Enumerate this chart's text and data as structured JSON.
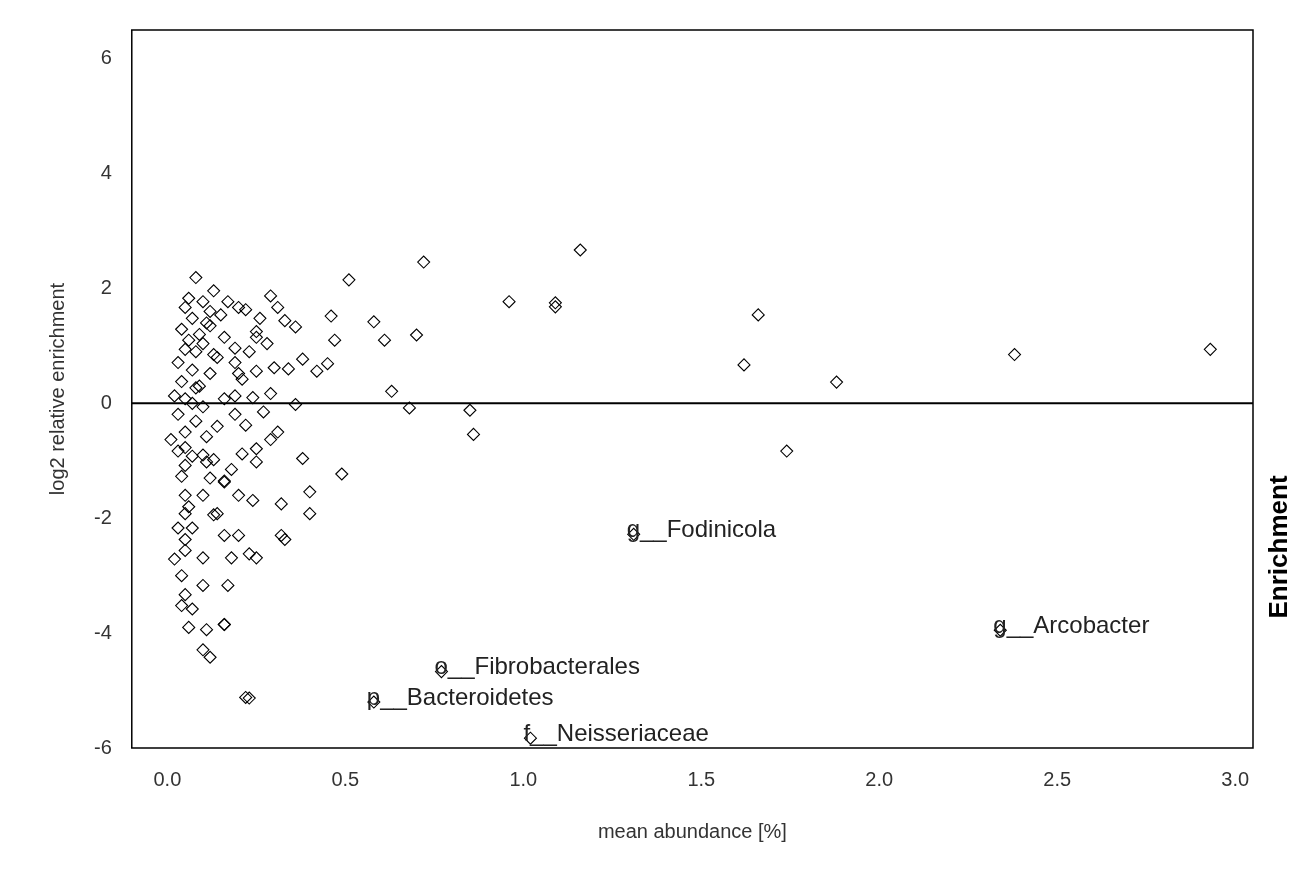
{
  "chart_data": {
    "type": "scatter",
    "xlabel": "mean abundance [%]",
    "ylabel": "log2 relative enrichment",
    "xlim": [
      -0.1,
      3.05
    ],
    "ylim": [
      -6,
      6.5
    ],
    "xticks": [
      {
        "value": 0,
        "label": "0.0"
      },
      {
        "value": 0.5,
        "label": "0.5"
      },
      {
        "value": 1,
        "label": "1.0"
      },
      {
        "value": 1.5,
        "label": "1.5"
      },
      {
        "value": 2,
        "label": "2.0"
      },
      {
        "value": 2.5,
        "label": "2.5"
      },
      {
        "value": 3,
        "label": "3.0"
      }
    ],
    "yticks": [
      -6,
      -4,
      -2,
      0,
      2,
      4,
      6
    ],
    "grid": false,
    "legend": false,
    "marker": "diamond",
    "ref_lines": [
      {
        "axis": "y",
        "value": 0,
        "color": "#000000"
      }
    ],
    "annotations": [
      {
        "text": "g__Fodinicola",
        "x": 1.31,
        "y": -2.28
      },
      {
        "text": "o__Fibrobacterales",
        "x": 0.77,
        "y": -4.67
      },
      {
        "text": "p__Bacteroidetes",
        "x": 0.58,
        "y": -5.2
      },
      {
        "text": "f__Neisseriaceae",
        "x": 1.02,
        "y": -5.83
      },
      {
        "text": "g__Arcobacter",
        "x": 2.34,
        "y": -3.95
      },
      "Enrichment"
    ],
    "series": [
      {
        "color": "#000000",
        "x": [
          0.51,
          0.72,
          1.16,
          0.96,
          1.09,
          1.09,
          0.46,
          0.58,
          0.61,
          0.7,
          0.47,
          0.45,
          0.42,
          0.38,
          0.34,
          0.29,
          0.31,
          0.33,
          0.36,
          0.63,
          0.68,
          0.85,
          0.86,
          0.36,
          0.29,
          0.27,
          0.38,
          0.49,
          0.4,
          0.4,
          0.32,
          0.33,
          0.32,
          0.25,
          0.23,
          0.18,
          0.17,
          0.16,
          0.22,
          0.23,
          1.31,
          0.77,
          0.58,
          1.02,
          0.31,
          0.29,
          0.25,
          0.25,
          0.24,
          0.19,
          0.22,
          0.19,
          0.21,
          0.18,
          0.16,
          0.2,
          0.24,
          0.14,
          0.2,
          0.16,
          0.26,
          0.22,
          0.17,
          0.25,
          0.28,
          0.23,
          0.19,
          0.3,
          0.25,
          0.21,
          1.66,
          1.62,
          1.88,
          1.74,
          2.38,
          2.93,
          2.34,
          0.08,
          0.13,
          0.06,
          0.05,
          0.1,
          0.07,
          0.04,
          0.12,
          0.15,
          0.16,
          0.1,
          0.05,
          0.13,
          0.03,
          0.07,
          0.12,
          0.04,
          0.08,
          0.02,
          0.05,
          0.1,
          0.03,
          0.08,
          0.01,
          0.05,
          0.11,
          0.03,
          0.07,
          0.05,
          0.2,
          0.25,
          0.19,
          0.2,
          0.16,
          0.05,
          0.04,
          0.11,
          0.13,
          0.16,
          0.1,
          0.05,
          0.05,
          0.13,
          0.03,
          0.07,
          0.05,
          0.05,
          0.02,
          0.1,
          0.04,
          0.1,
          0.05,
          0.04,
          0.07,
          0.06,
          0.11,
          0.16,
          0.1,
          0.12,
          0.09,
          0.11,
          0.14,
          0.06,
          0.08,
          0.12,
          0.09,
          0.07,
          0.14,
          0.1,
          0.12,
          0.06
        ],
        "values": [
          2.15,
          2.46,
          2.67,
          1.77,
          1.75,
          1.68,
          1.52,
          1.42,
          1.1,
          1.19,
          1.1,
          0.69,
          0.56,
          0.77,
          0.6,
          1.87,
          1.67,
          1.44,
          1.33,
          0.21,
          -0.08,
          -0.12,
          -0.54,
          -0.02,
          0.17,
          -0.15,
          -0.96,
          -1.23,
          -1.54,
          -1.92,
          -1.75,
          -2.37,
          -2.3,
          -2.69,
          -2.62,
          -2.69,
          -3.17,
          -3.85,
          -5.12,
          -5.13,
          -2.28,
          -4.67,
          -5.2,
          -5.83,
          -0.5,
          -0.63,
          -0.79,
          -1.02,
          0.1,
          0.13,
          -0.38,
          -0.19,
          -0.88,
          -1.15,
          -1.37,
          -1.6,
          -1.69,
          -1.92,
          -2.3,
          -2.3,
          1.48,
          1.63,
          1.77,
          1.25,
          1.04,
          0.9,
          0.71,
          0.62,
          0.56,
          0.42,
          1.54,
          0.67,
          0.37,
          -0.83,
          0.85,
          0.94,
          -3.95,
          2.19,
          1.96,
          1.83,
          1.67,
          1.77,
          1.48,
          1.29,
          1.35,
          1.54,
          1.15,
          1.04,
          0.94,
          0.85,
          0.71,
          0.58,
          0.52,
          0.38,
          0.27,
          0.13,
          0.08,
          -0.06,
          -0.19,
          -0.31,
          -0.63,
          -0.5,
          -0.58,
          -0.83,
          -0.92,
          -1.08,
          1.67,
          1.15,
          0.96,
          0.52,
          0.08,
          -0.77,
          -1.27,
          -1.02,
          -0.98,
          -1.35,
          -1.6,
          -1.6,
          -1.92,
          -1.94,
          -2.17,
          -2.17,
          -2.37,
          -2.56,
          -2.71,
          -2.69,
          -3.0,
          -3.17,
          -3.33,
          -3.52,
          -3.58,
          -3.9,
          -3.94,
          -3.85,
          -4.29,
          -4.42,
          1.2,
          1.4,
          0.8,
          1.1,
          0.9,
          1.6,
          0.3,
          0.0,
          -0.4,
          -0.9,
          -1.3,
          -1.8
        ]
      }
    ]
  }
}
